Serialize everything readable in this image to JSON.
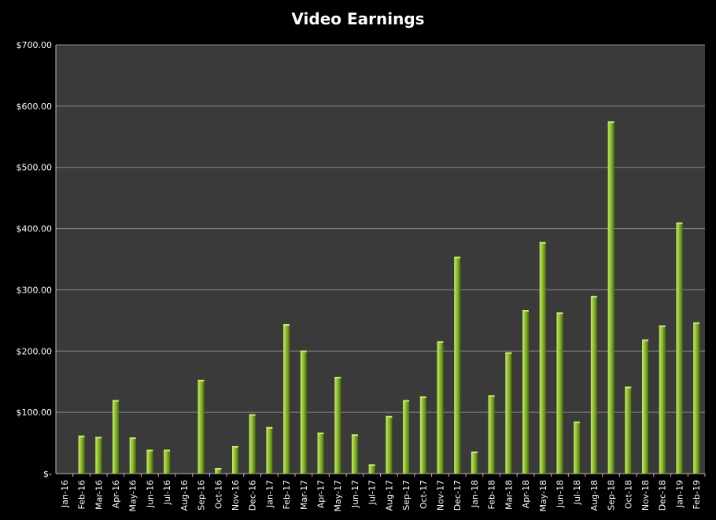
{
  "chart_data": {
    "type": "bar",
    "title": "Video Earnings",
    "xlabel": "",
    "ylabel": "",
    "ylim": [
      0,
      700
    ],
    "y_ticks": [
      {
        "value": 0,
        "label": "$-"
      },
      {
        "value": 100,
        "label": "$100.00"
      },
      {
        "value": 200,
        "label": "$200.00"
      },
      {
        "value": 300,
        "label": "$300.00"
      },
      {
        "value": 400,
        "label": "$400.00"
      },
      {
        "value": 500,
        "label": "$500.00"
      },
      {
        "value": 600,
        "label": "$600.00"
      },
      {
        "value": 700,
        "label": "$700.00"
      }
    ],
    "grid": true,
    "legend": "none",
    "categories": [
      "Jan-16",
      "Feb-16",
      "Mar-16",
      "Apr-16",
      "May-16",
      "Jun-16",
      "Jul-16",
      "Aug-16",
      "Sep-16",
      "Oct-16",
      "Nov-16",
      "Dec-16",
      "Jan-17",
      "Feb-17",
      "Mar-17",
      "Apr-17",
      "May-17",
      "Jun-17",
      "Jul-17",
      "Aug-17",
      "Sep-17",
      "Oct-17",
      "Nov-17",
      "Dec-17",
      "Jan-18",
      "Feb-18",
      "Mar-18",
      "Apr-18",
      "May-18",
      "Jun-18",
      "Jul-18",
      "Aug-18",
      "Sep-18",
      "Oct-18",
      "Nov-18",
      "Dec-18",
      "Jan-19",
      "Feb-19"
    ],
    "values": [
      0,
      62,
      60,
      120,
      59,
      39,
      39,
      0,
      153,
      9,
      45,
      97,
      76,
      244,
      201,
      67,
      158,
      64,
      15,
      94,
      120,
      126,
      216,
      354,
      36,
      128,
      198,
      267,
      378,
      263,
      85,
      290,
      575,
      142,
      219,
      242,
      410,
      247
    ],
    "colors": {
      "background": "#000000",
      "plot_area": "#3a3a3a",
      "gridline": "#8a8a8a",
      "bar_light": "#c8ec6a",
      "bar_mid": "#8fbf2c",
      "bar_dark": "#4f7010",
      "text": "#ffffff"
    }
  }
}
